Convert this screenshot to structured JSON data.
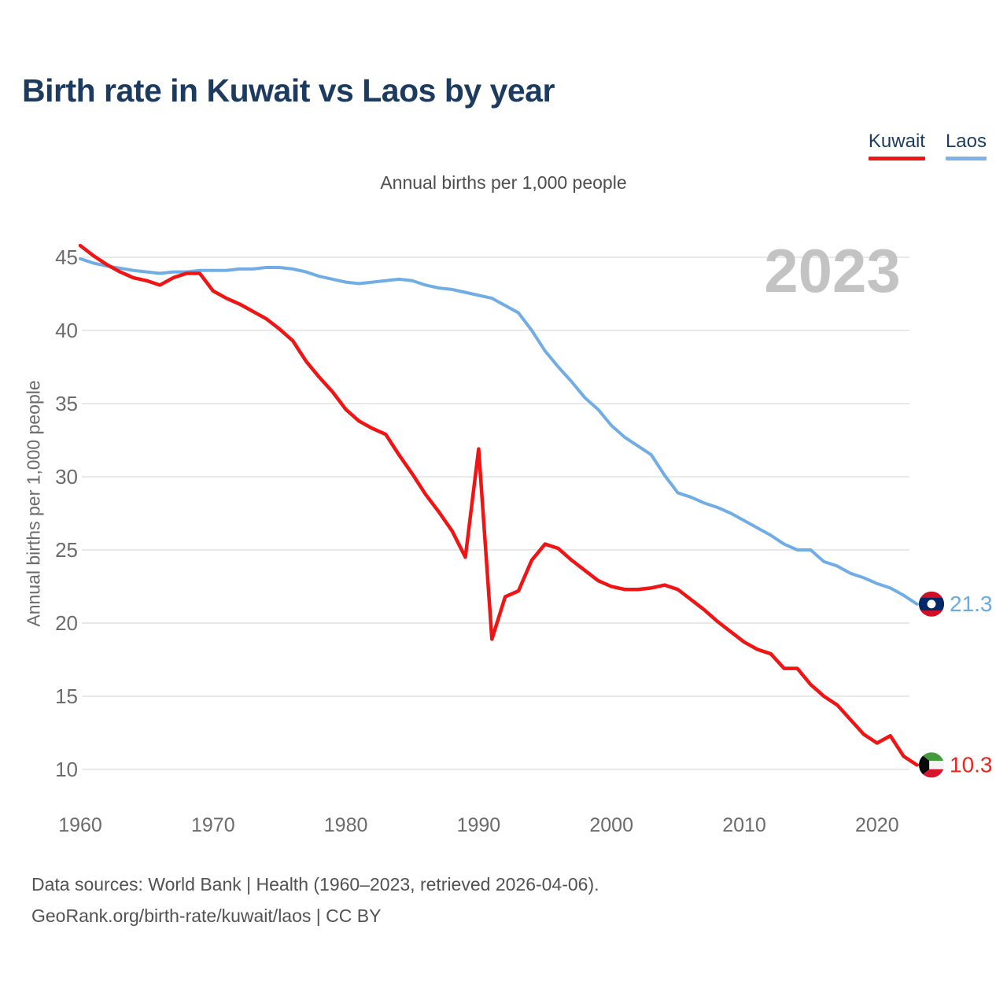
{
  "header": {
    "title": "Birth rate in Kuwait vs Laos by year"
  },
  "legend": {
    "items": [
      {
        "label": "Kuwait",
        "color": "#f01414"
      },
      {
        "label": "Laos",
        "color": "#7db3e8"
      }
    ]
  },
  "chart_data": {
    "type": "line",
    "title": "Annual births per 1,000 people",
    "xlabel": "",
    "ylabel": "Annual births per 1,000 people",
    "watermark": "2023",
    "grid": true,
    "legend_position": "top-right",
    "xlim": [
      1960,
      2023
    ],
    "ylim": [
      8.5,
      46.5
    ],
    "xticks": [
      1960,
      1970,
      1980,
      1990,
      2000,
      2010,
      2020
    ],
    "yticks": [
      10,
      15,
      20,
      25,
      30,
      35,
      40,
      45
    ],
    "x": [
      1960,
      1961,
      1962,
      1963,
      1964,
      1965,
      1966,
      1967,
      1968,
      1969,
      1970,
      1971,
      1972,
      1973,
      1974,
      1975,
      1976,
      1977,
      1978,
      1979,
      1980,
      1981,
      1982,
      1983,
      1984,
      1985,
      1986,
      1987,
      1988,
      1989,
      1990,
      1991,
      1992,
      1993,
      1994,
      1995,
      1996,
      1997,
      1998,
      1999,
      2000,
      2001,
      2002,
      2003,
      2004,
      2005,
      2006,
      2007,
      2008,
      2009,
      2010,
      2011,
      2012,
      2013,
      2014,
      2015,
      2016,
      2017,
      2018,
      2019,
      2020,
      2021,
      2022,
      2023
    ],
    "series": [
      {
        "name": "Laos",
        "color": "#70ade4",
        "label_color": "#6aa9e2",
        "end_label": "21.3",
        "flag": "laos",
        "values": [
          44.9,
          44.6,
          44.4,
          44.25,
          44.1,
          44.0,
          43.9,
          44.0,
          44.0,
          44.1,
          44.1,
          44.1,
          44.2,
          44.2,
          44.3,
          44.3,
          44.2,
          44.0,
          43.7,
          43.5,
          43.3,
          43.2,
          43.3,
          43.4,
          43.5,
          43.4,
          43.1,
          42.9,
          42.8,
          42.6,
          42.4,
          42.2,
          41.7,
          41.2,
          40.0,
          38.6,
          37.5,
          36.5,
          35.4,
          34.6,
          33.5,
          32.7,
          32.1,
          31.5,
          30.1,
          28.9,
          28.6,
          28.2,
          27.9,
          27.5,
          27.0,
          26.5,
          26.0,
          25.4,
          25.0,
          25.0,
          24.2,
          23.9,
          23.4,
          23.1,
          22.7,
          22.4,
          21.9,
          21.3
        ]
      },
      {
        "name": "Kuwait",
        "color": "#f01414",
        "label_color": "#ee2420",
        "end_label": "10.3",
        "flag": "kuwait",
        "values": [
          45.8,
          45.1,
          44.5,
          44.0,
          43.6,
          43.4,
          43.1,
          43.6,
          43.9,
          43.9,
          42.7,
          42.2,
          41.8,
          41.3,
          40.8,
          40.1,
          39.3,
          37.9,
          36.8,
          35.8,
          34.6,
          33.8,
          33.3,
          32.9,
          31.5,
          30.2,
          28.8,
          27.6,
          26.3,
          24.5,
          31.9,
          18.9,
          21.8,
          22.2,
          24.3,
          25.4,
          25.1,
          24.3,
          23.6,
          22.9,
          22.5,
          22.3,
          22.3,
          22.4,
          22.6,
          22.3,
          21.6,
          20.9,
          20.1,
          19.4,
          18.7,
          18.2,
          17.9,
          16.9,
          16.9,
          15.8,
          15.0,
          14.4,
          13.4,
          12.4,
          11.8,
          12.3,
          10.9,
          10.3
        ]
      }
    ],
    "flag_colors": {
      "laos": {
        "red": "#ce1126",
        "blue": "#002868",
        "white": "#ffffff"
      },
      "kuwait": {
        "green": "#439b3c",
        "white": "#f3f3f3",
        "red": "#d8152f",
        "black": "#0a0a0a"
      }
    }
  },
  "style": {
    "grid_color": "#e9e9e9",
    "tick_color": "#6b6b6b",
    "watermark_color": "#c3c3c3"
  },
  "footer": {
    "line1": "Data sources: World Bank | Health (1960–2023, retrieved 2026-04-06).",
    "line2": "GeoRank.org/birth-rate/kuwait/laos | CC BY"
  }
}
